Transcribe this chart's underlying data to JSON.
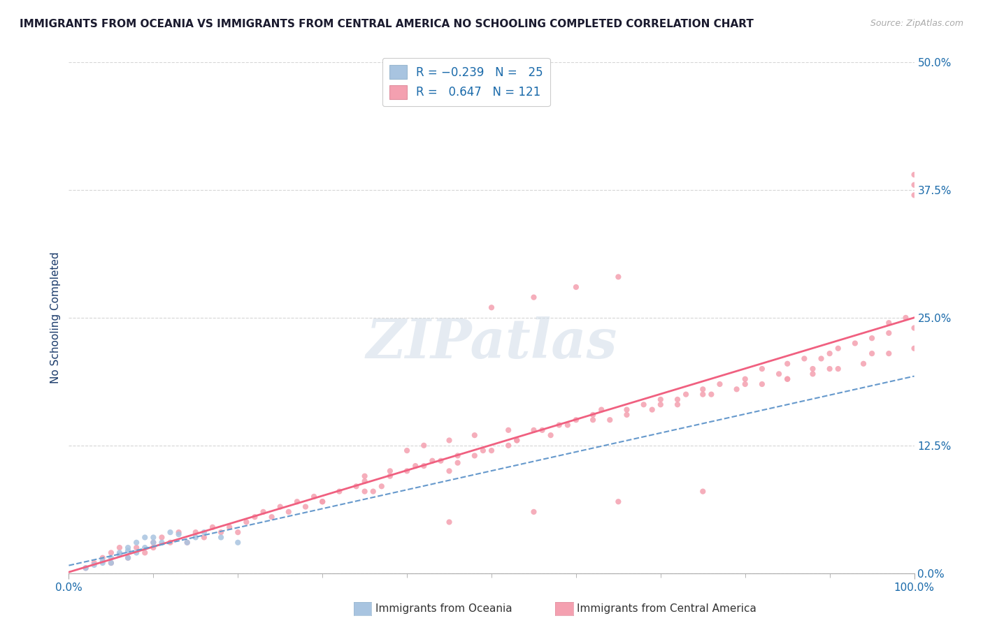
{
  "title": "IMMIGRANTS FROM OCEANIA VS IMMIGRANTS FROM CENTRAL AMERICA NO SCHOOLING COMPLETED CORRELATION CHART",
  "source": "Source: ZipAtlas.com",
  "ylabel": "No Schooling Completed",
  "xlim": [
    0.0,
    1.0
  ],
  "ylim": [
    0.0,
    0.5
  ],
  "ytick_labels": [
    "0.0%",
    "12.5%",
    "25.0%",
    "37.5%",
    "50.0%"
  ],
  "ytick_values": [
    0.0,
    0.125,
    0.25,
    0.375,
    0.5
  ],
  "color_oceania": "#a8c4e0",
  "color_central_america": "#f4a0b0",
  "color_line_oceania": "#6699cc",
  "color_line_central_america": "#f06080",
  "watermark_color": "#d0dce8",
  "label_oceania": "Immigrants from Oceania",
  "label_central_america": "Immigrants from Central America",
  "title_color": "#1a1a2e",
  "axis_label_color": "#1a3a6a",
  "tick_label_color": "#1a6aaa",
  "oceania_scatter_x": [
    0.02,
    0.03,
    0.04,
    0.04,
    0.05,
    0.05,
    0.06,
    0.06,
    0.07,
    0.07,
    0.07,
    0.08,
    0.08,
    0.09,
    0.09,
    0.1,
    0.1,
    0.11,
    0.12,
    0.13,
    0.14,
    0.15,
    0.16,
    0.18,
    0.2
  ],
  "oceania_scatter_y": [
    0.005,
    0.008,
    0.01,
    0.012,
    0.015,
    0.01,
    0.02,
    0.018,
    0.022,
    0.025,
    0.015,
    0.02,
    0.03,
    0.025,
    0.035,
    0.03,
    0.035,
    0.03,
    0.04,
    0.038,
    0.03,
    0.035,
    0.04,
    0.035,
    0.03
  ],
  "central_scatter_x": [
    0.02,
    0.03,
    0.04,
    0.05,
    0.05,
    0.06,
    0.07,
    0.08,
    0.09,
    0.1,
    0.1,
    0.11,
    0.12,
    0.13,
    0.14,
    0.15,
    0.16,
    0.17,
    0.18,
    0.19,
    0.2,
    0.21,
    0.22,
    0.23,
    0.24,
    0.25,
    0.26,
    0.27,
    0.28,
    0.29,
    0.3,
    0.32,
    0.34,
    0.35,
    0.36,
    0.37,
    0.38,
    0.4,
    0.42,
    0.44,
    0.45,
    0.46,
    0.48,
    0.5,
    0.52,
    0.53,
    0.55,
    0.57,
    0.58,
    0.6,
    0.62,
    0.63,
    0.64,
    0.66,
    0.68,
    0.7,
    0.72,
    0.73,
    0.75,
    0.77,
    0.8,
    0.82,
    0.84,
    0.85,
    0.87,
    0.88,
    0.89,
    0.9,
    0.91,
    0.93,
    0.95,
    0.97,
    0.97,
    0.99,
    1.0,
    1.0,
    1.0,
    0.5,
    0.55,
    0.6,
    0.65,
    0.4,
    0.42,
    0.45,
    0.48,
    0.52,
    0.35,
    0.38,
    0.41,
    0.43,
    0.46,
    0.49,
    0.53,
    0.56,
    0.59,
    0.62,
    0.66,
    0.69,
    0.72,
    0.76,
    0.79,
    0.82,
    0.85,
    0.88,
    0.91,
    0.94,
    0.97,
    1.0,
    0.3,
    0.35,
    0.7,
    0.75,
    0.8,
    0.85,
    0.9,
    0.95,
    1.0,
    0.45,
    0.55,
    0.65,
    0.75
  ],
  "central_scatter_y": [
    0.005,
    0.01,
    0.015,
    0.02,
    0.01,
    0.025,
    0.015,
    0.025,
    0.02,
    0.03,
    0.025,
    0.035,
    0.03,
    0.04,
    0.03,
    0.04,
    0.035,
    0.045,
    0.04,
    0.045,
    0.04,
    0.05,
    0.055,
    0.06,
    0.055,
    0.065,
    0.06,
    0.07,
    0.065,
    0.075,
    0.07,
    0.08,
    0.085,
    0.09,
    0.08,
    0.085,
    0.095,
    0.1,
    0.105,
    0.11,
    0.1,
    0.108,
    0.115,
    0.12,
    0.125,
    0.13,
    0.14,
    0.135,
    0.145,
    0.15,
    0.155,
    0.16,
    0.15,
    0.16,
    0.165,
    0.17,
    0.165,
    0.175,
    0.18,
    0.185,
    0.19,
    0.2,
    0.195,
    0.205,
    0.21,
    0.2,
    0.21,
    0.215,
    0.22,
    0.225,
    0.23,
    0.235,
    0.245,
    0.25,
    0.37,
    0.38,
    0.39,
    0.26,
    0.27,
    0.28,
    0.29,
    0.12,
    0.125,
    0.13,
    0.135,
    0.14,
    0.095,
    0.1,
    0.105,
    0.11,
    0.115,
    0.12,
    0.13,
    0.14,
    0.145,
    0.15,
    0.155,
    0.16,
    0.17,
    0.175,
    0.18,
    0.185,
    0.19,
    0.195,
    0.2,
    0.205,
    0.215,
    0.22,
    0.07,
    0.08,
    0.165,
    0.175,
    0.185,
    0.19,
    0.2,
    0.215,
    0.24,
    0.05,
    0.06,
    0.07,
    0.08
  ]
}
